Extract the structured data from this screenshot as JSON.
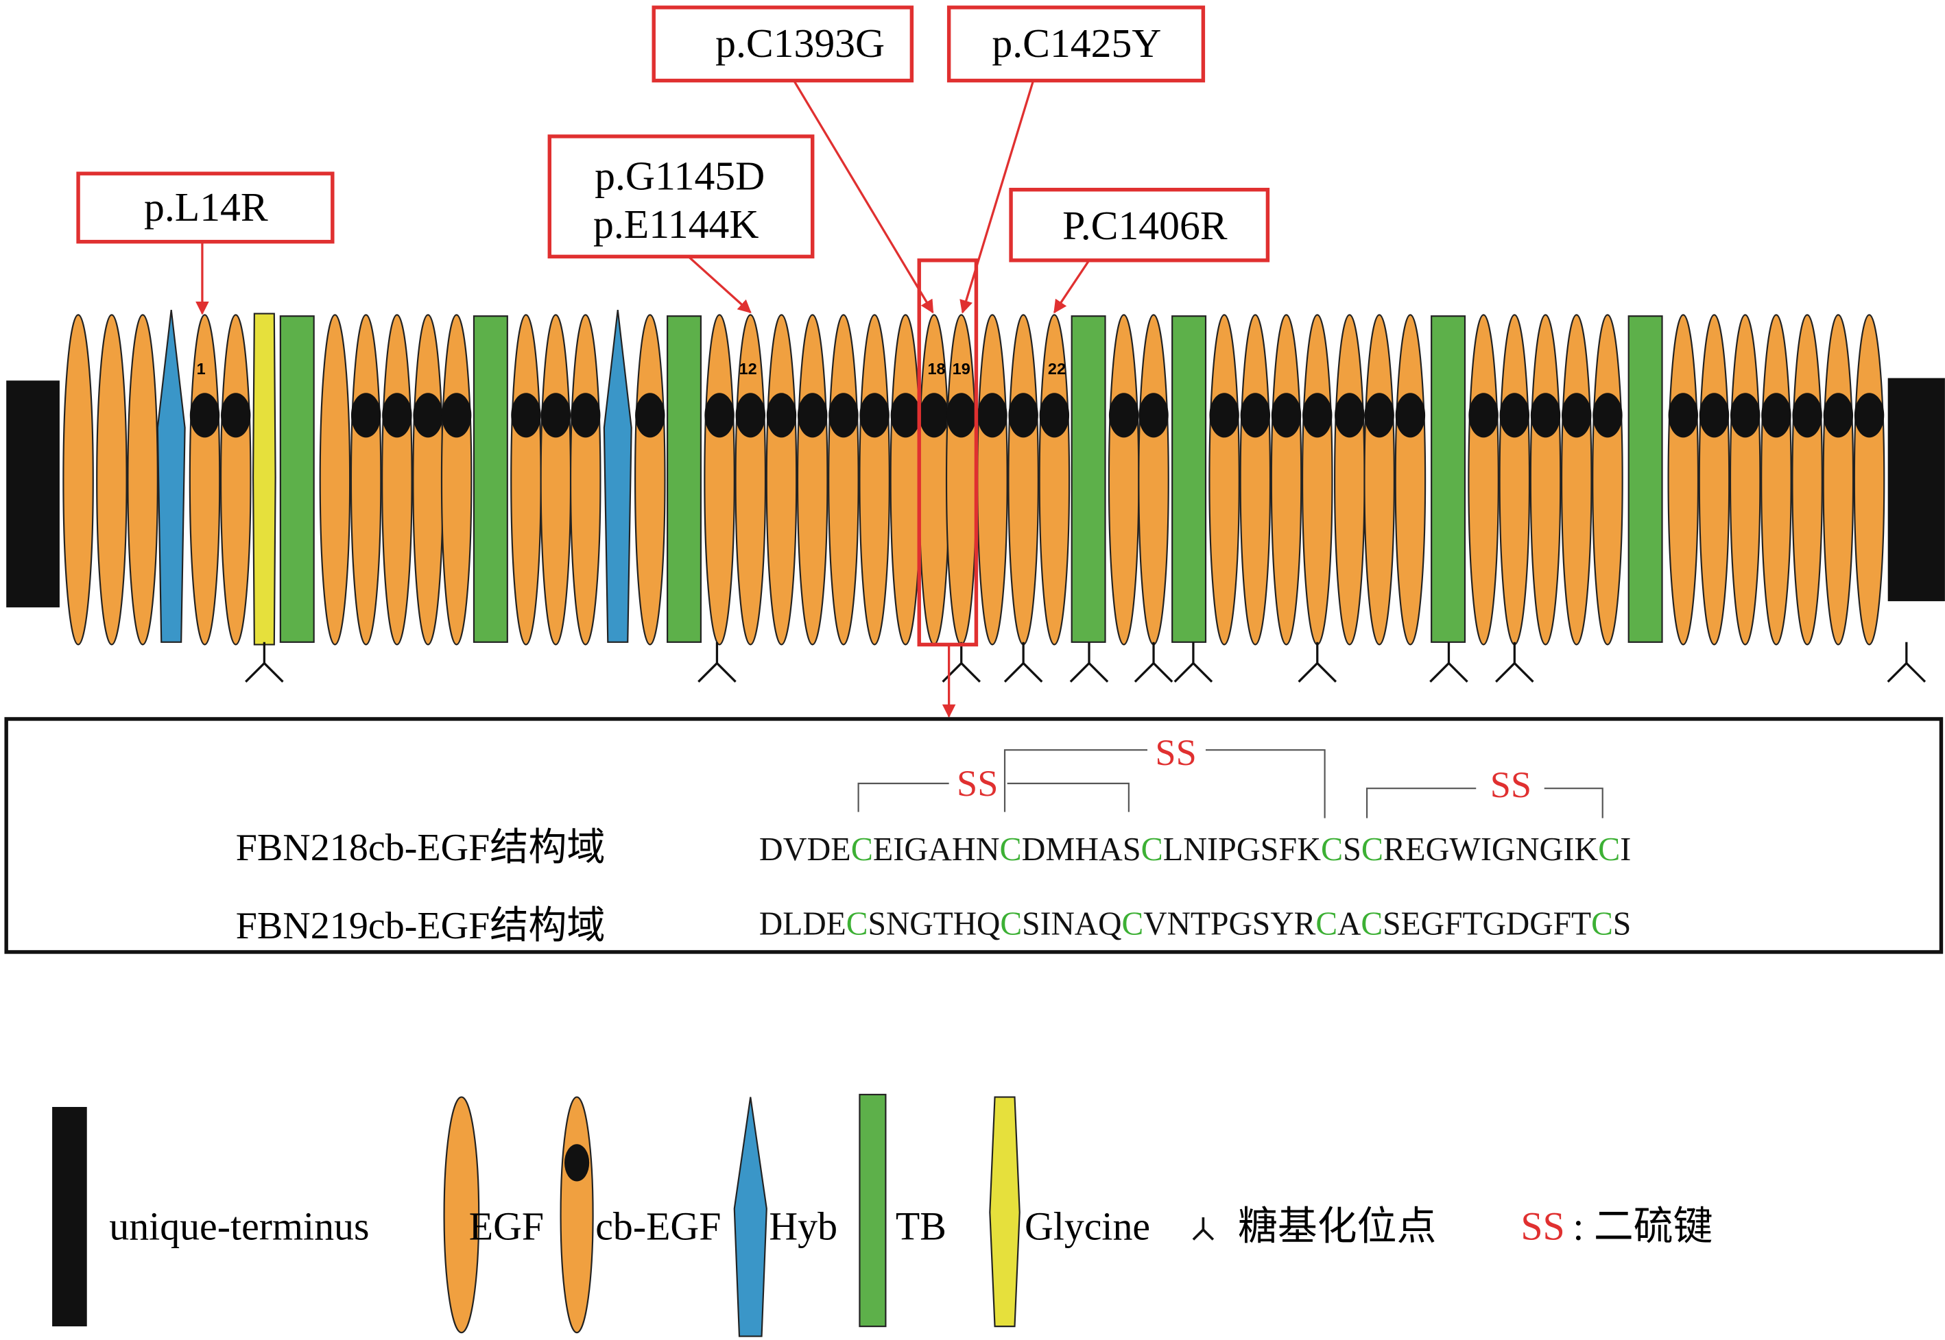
{
  "mutations": [
    {
      "lines": [
        "p.L14R"
      ]
    },
    {
      "lines": [
        "p.G1145D",
        "p.E1144K"
      ]
    },
    {
      "lines": [
        "p.C1393G"
      ]
    },
    {
      "lines": [
        "p.C1425Y"
      ]
    },
    {
      "lines": [
        "P.C1406R"
      ]
    }
  ],
  "domain_numbers": [
    "1",
    "12",
    "18",
    "19",
    "22"
  ],
  "bonds": [
    "SS",
    "SS",
    "SS"
  ],
  "sequences": [
    {
      "name": "FBN218cb-EGF结构域",
      "segments": [
        "DVDE",
        "C",
        "EIGAHN",
        "C",
        "DMHAS",
        "C",
        "LNIPGSFK",
        "C",
        "S",
        "C",
        "REGWIGNGIK",
        "C",
        "I"
      ]
    },
    {
      "name": "FBN219cb-EGF结构域",
      "segments": [
        "DLDE",
        "C",
        "SNGTHQ",
        "C",
        "SINAQ",
        "C",
        "VNTPGSYR",
        "C",
        "A",
        "C",
        "SEGFTGDGFT",
        "C",
        "S"
      ]
    }
  ],
  "legend": [
    "unique-terminus",
    "EGF",
    "cb-EGF",
    "Hyb",
    "TB",
    "Glycine",
    "糖基化位点"
  ],
  "legend_bond": {
    "key": "SS",
    "text": ": 二硫键"
  }
}
